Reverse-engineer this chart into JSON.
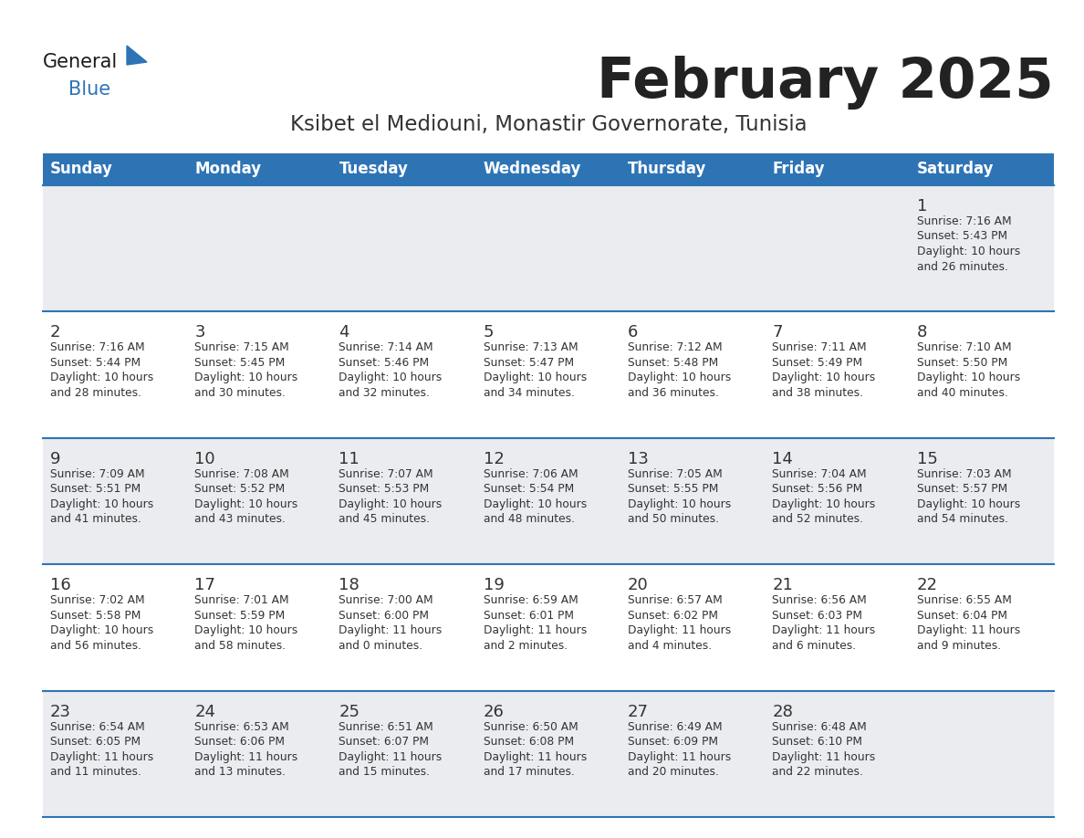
{
  "title": "February 2025",
  "subtitle": "Ksibet el Mediouni, Monastir Governorate, Tunisia",
  "header_bg": "#2E74B5",
  "header_text_color": "#FFFFFF",
  "day_names": [
    "Sunday",
    "Monday",
    "Tuesday",
    "Wednesday",
    "Thursday",
    "Friday",
    "Saturday"
  ],
  "alt_row_bg": "#EAECF0",
  "normal_row_bg": "#FFFFFF",
  "separator_color": "#2E74B5",
  "title_color": "#222222",
  "subtitle_color": "#333333",
  "cell_text_color": "#333333",
  "day_num_color": "#333333",
  "logo_general_color": "#1A1A1A",
  "logo_blue_color": "#2E74B5",
  "logo_triangle_color": "#2E74B5",
  "calendar": [
    [
      null,
      null,
      null,
      null,
      null,
      null,
      {
        "day": 1,
        "sunrise": "7:16 AM",
        "sunset": "5:43 PM",
        "daylight": "10 hours",
        "daylight2": "and 26 minutes."
      }
    ],
    [
      {
        "day": 2,
        "sunrise": "7:16 AM",
        "sunset": "5:44 PM",
        "daylight": "10 hours",
        "daylight2": "and 28 minutes."
      },
      {
        "day": 3,
        "sunrise": "7:15 AM",
        "sunset": "5:45 PM",
        "daylight": "10 hours",
        "daylight2": "and 30 minutes."
      },
      {
        "day": 4,
        "sunrise": "7:14 AM",
        "sunset": "5:46 PM",
        "daylight": "10 hours",
        "daylight2": "and 32 minutes."
      },
      {
        "day": 5,
        "sunrise": "7:13 AM",
        "sunset": "5:47 PM",
        "daylight": "10 hours",
        "daylight2": "and 34 minutes."
      },
      {
        "day": 6,
        "sunrise": "7:12 AM",
        "sunset": "5:48 PM",
        "daylight": "10 hours",
        "daylight2": "and 36 minutes."
      },
      {
        "day": 7,
        "sunrise": "7:11 AM",
        "sunset": "5:49 PM",
        "daylight": "10 hours",
        "daylight2": "and 38 minutes."
      },
      {
        "day": 8,
        "sunrise": "7:10 AM",
        "sunset": "5:50 PM",
        "daylight": "10 hours",
        "daylight2": "and 40 minutes."
      }
    ],
    [
      {
        "day": 9,
        "sunrise": "7:09 AM",
        "sunset": "5:51 PM",
        "daylight": "10 hours",
        "daylight2": "and 41 minutes."
      },
      {
        "day": 10,
        "sunrise": "7:08 AM",
        "sunset": "5:52 PM",
        "daylight": "10 hours",
        "daylight2": "and 43 minutes."
      },
      {
        "day": 11,
        "sunrise": "7:07 AM",
        "sunset": "5:53 PM",
        "daylight": "10 hours",
        "daylight2": "and 45 minutes."
      },
      {
        "day": 12,
        "sunrise": "7:06 AM",
        "sunset": "5:54 PM",
        "daylight": "10 hours",
        "daylight2": "and 48 minutes."
      },
      {
        "day": 13,
        "sunrise": "7:05 AM",
        "sunset": "5:55 PM",
        "daylight": "10 hours",
        "daylight2": "and 50 minutes."
      },
      {
        "day": 14,
        "sunrise": "7:04 AM",
        "sunset": "5:56 PM",
        "daylight": "10 hours",
        "daylight2": "and 52 minutes."
      },
      {
        "day": 15,
        "sunrise": "7:03 AM",
        "sunset": "5:57 PM",
        "daylight": "10 hours",
        "daylight2": "and 54 minutes."
      }
    ],
    [
      {
        "day": 16,
        "sunrise": "7:02 AM",
        "sunset": "5:58 PM",
        "daylight": "10 hours",
        "daylight2": "and 56 minutes."
      },
      {
        "day": 17,
        "sunrise": "7:01 AM",
        "sunset": "5:59 PM",
        "daylight": "10 hours",
        "daylight2": "and 58 minutes."
      },
      {
        "day": 18,
        "sunrise": "7:00 AM",
        "sunset": "6:00 PM",
        "daylight": "11 hours",
        "daylight2": "and 0 minutes."
      },
      {
        "day": 19,
        "sunrise": "6:59 AM",
        "sunset": "6:01 PM",
        "daylight": "11 hours",
        "daylight2": "and 2 minutes."
      },
      {
        "day": 20,
        "sunrise": "6:57 AM",
        "sunset": "6:02 PM",
        "daylight": "11 hours",
        "daylight2": "and 4 minutes."
      },
      {
        "day": 21,
        "sunrise": "6:56 AM",
        "sunset": "6:03 PM",
        "daylight": "11 hours",
        "daylight2": "and 6 minutes."
      },
      {
        "day": 22,
        "sunrise": "6:55 AM",
        "sunset": "6:04 PM",
        "daylight": "11 hours",
        "daylight2": "and 9 minutes."
      }
    ],
    [
      {
        "day": 23,
        "sunrise": "6:54 AM",
        "sunset": "6:05 PM",
        "daylight": "11 hours",
        "daylight2": "and 11 minutes."
      },
      {
        "day": 24,
        "sunrise": "6:53 AM",
        "sunset": "6:06 PM",
        "daylight": "11 hours",
        "daylight2": "and 13 minutes."
      },
      {
        "day": 25,
        "sunrise": "6:51 AM",
        "sunset": "6:07 PM",
        "daylight": "11 hours",
        "daylight2": "and 15 minutes."
      },
      {
        "day": 26,
        "sunrise": "6:50 AM",
        "sunset": "6:08 PM",
        "daylight": "11 hours",
        "daylight2": "and 17 minutes."
      },
      {
        "day": 27,
        "sunrise": "6:49 AM",
        "sunset": "6:09 PM",
        "daylight": "11 hours",
        "daylight2": "and 20 minutes."
      },
      {
        "day": 28,
        "sunrise": "6:48 AM",
        "sunset": "6:10 PM",
        "daylight": "11 hours",
        "daylight2": "and 22 minutes."
      },
      null
    ]
  ]
}
